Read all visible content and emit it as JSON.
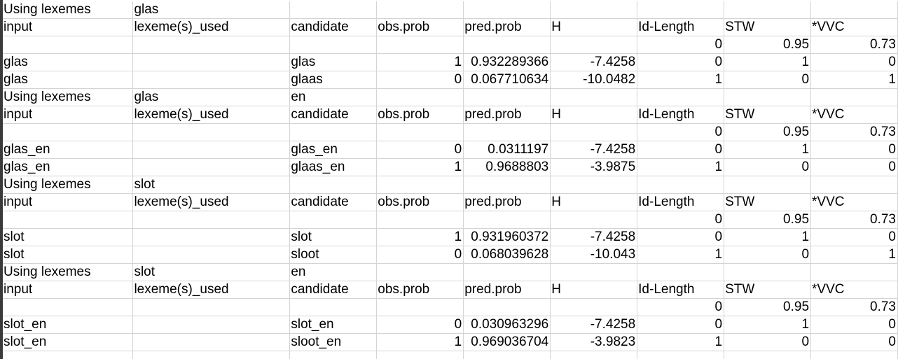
{
  "sheet": {
    "rows": [
      [
        "Using lexemes",
        "glas",
        "",
        "",
        "",
        "",
        "",
        "",
        ""
      ],
      [
        "input",
        "lexeme(s)_used",
        "candidate",
        "obs.prob",
        "pred.prob",
        "H",
        "Id-Length",
        "STW",
        "*VVC"
      ],
      [
        "",
        "",
        "",
        "",
        "",
        "",
        "0",
        "0.95",
        "0.73"
      ],
      [
        "glas",
        "",
        "glas",
        "1",
        "0.932289366",
        "-7.4258",
        "0",
        "1",
        "0"
      ],
      [
        "glas",
        "",
        "glaas",
        "0",
        "0.067710634",
        "-10.0482",
        "1",
        "0",
        "1"
      ],
      [
        "Using lexemes",
        "glas",
        "en",
        "",
        "",
        "",
        "",
        "",
        ""
      ],
      [
        "input",
        "lexeme(s)_used",
        "candidate",
        "obs.prob",
        "pred.prob",
        "H",
        "Id-Length",
        "STW",
        "*VVC"
      ],
      [
        "",
        "",
        "",
        "",
        "",
        "",
        "0",
        "0.95",
        "0.73"
      ],
      [
        "glas_en",
        "",
        "glas_en",
        "0",
        "0.0311197",
        "-7.4258",
        "0",
        "1",
        "0"
      ],
      [
        "glas_en",
        "",
        "glaas_en",
        "1",
        "0.9688803",
        "-3.9875",
        "1",
        "0",
        "0"
      ],
      [
        "Using lexemes",
        "slot",
        "",
        "",
        "",
        "",
        "",
        "",
        ""
      ],
      [
        "input",
        "lexeme(s)_used",
        "candidate",
        "obs.prob",
        "pred.prob",
        "H",
        "Id-Length",
        "STW",
        "*VVC"
      ],
      [
        "",
        "",
        "",
        "",
        "",
        "",
        "0",
        "0.95",
        "0.73"
      ],
      [
        "slot",
        "",
        "slot",
        "1",
        "0.931960372",
        "-7.4258",
        "0",
        "1",
        "0"
      ],
      [
        "slot",
        "",
        "sloot",
        "0",
        "0.068039628",
        "-10.043",
        "1",
        "0",
        "1"
      ],
      [
        "Using lexemes",
        "slot",
        "en",
        "",
        "",
        "",
        "",
        "",
        ""
      ],
      [
        "input",
        "lexeme(s)_used",
        "candidate",
        "obs.prob",
        "pred.prob",
        "H",
        "Id-Length",
        "STW",
        "*VVC"
      ],
      [
        "",
        "",
        "",
        "",
        "",
        "",
        "0",
        "0.95",
        "0.73"
      ],
      [
        "slot_en",
        "",
        "slot_en",
        "0",
        "0.030963296",
        "-7.4258",
        "0",
        "1",
        "0"
      ],
      [
        "slot_en",
        "",
        "sloot_en",
        "1",
        "0.969036704",
        "-3.9823",
        "1",
        "0",
        "0"
      ],
      [
        "",
        "",
        "",
        "",
        "",
        "",
        "",
        "",
        ""
      ]
    ]
  }
}
